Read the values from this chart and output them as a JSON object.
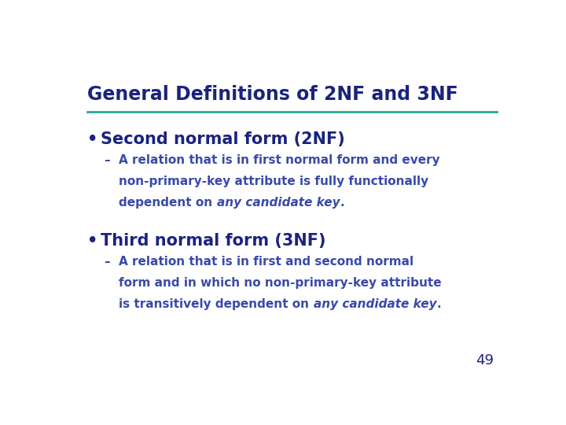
{
  "title": "General Definitions of 2NF and 3NF",
  "title_color": "#1a237e",
  "line_color": "#26a69a",
  "bg_color": "#ffffff",
  "bullet1_text": "Second normal form (2NF)",
  "bullet2_text": "Third normal form (3NF)",
  "bullet_color": "#1a237e",
  "sub_color": "#3949ab",
  "sub1_line1": "A relation that is in first normal form and every",
  "sub1_line2": "non-primary-key attribute is fully functionally",
  "sub1_line3_pre": "dependent on ",
  "sub1_line3_italic": "any candidate key",
  "sub1_line3_post": ".",
  "sub2_line1": "A relation that is in first and second normal",
  "sub2_line2": "form and in which no non-primary-key attribute",
  "sub2_line3_pre": "is transitively dependent on ",
  "sub2_line3_italic": "any candidate key",
  "sub2_line3_post": ".",
  "page_number": "49",
  "page_color": "#1a237e"
}
